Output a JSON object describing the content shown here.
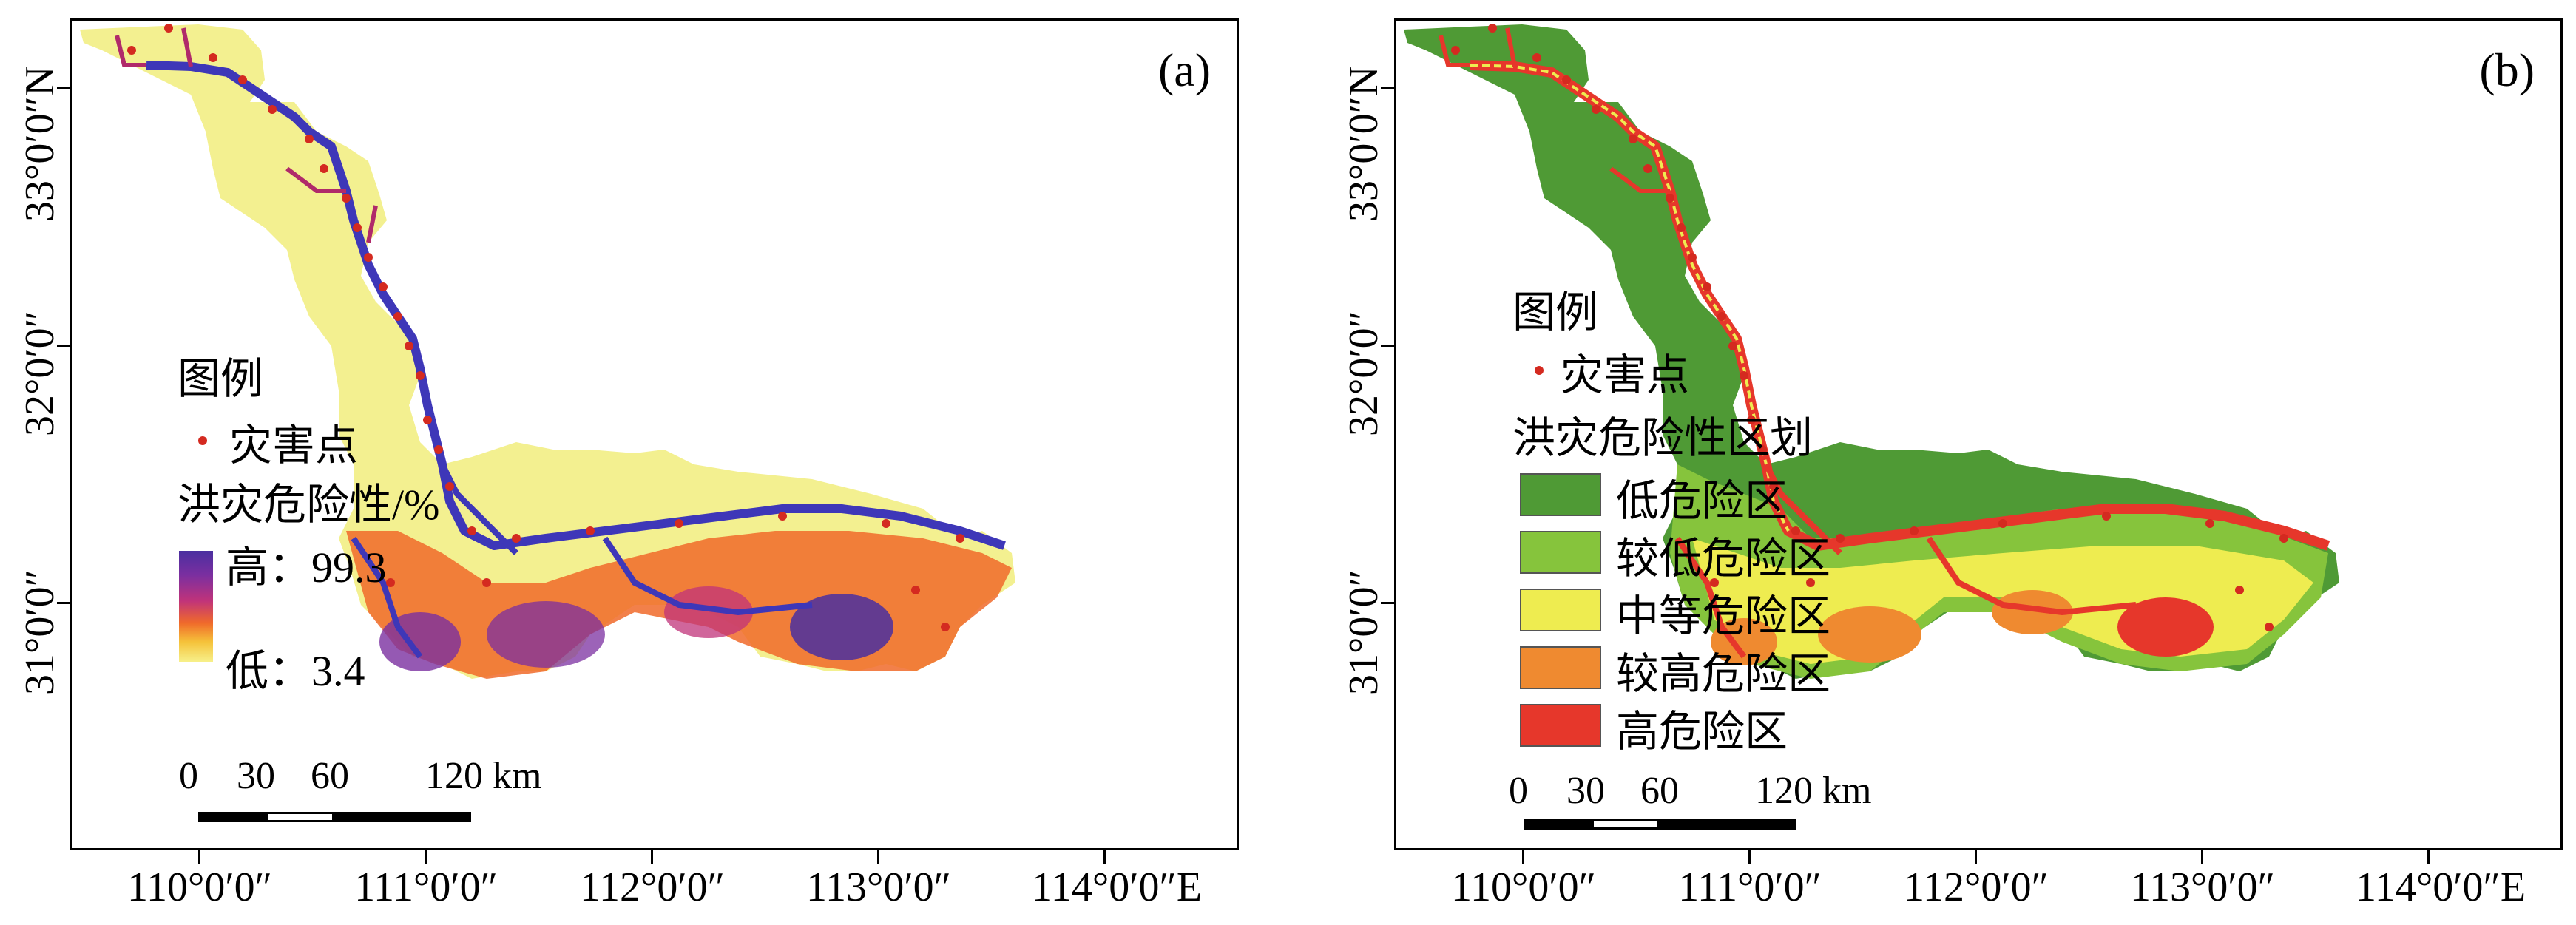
{
  "panels": [
    {
      "id": "a",
      "label": "(a)",
      "legend": {
        "title": "图例",
        "point_label": "灾害点",
        "ramp_title": "洪灾危险性/%",
        "high_label": "高：99.3",
        "low_label": "低：3.4",
        "ramp_colors": [
          "#4a2fa0",
          "#c0337a",
          "#f06a2a",
          "#f7f08a"
        ]
      },
      "base_color": "#f3f090",
      "river_color": "#3e37b8",
      "point_color": "#d42a20"
    },
    {
      "id": "b",
      "label": "(b)",
      "legend": {
        "title": "图例",
        "point_label": "灾害点",
        "zone_title": "洪灾危险性区划",
        "zones": [
          {
            "label": "低危险区",
            "color": "#4f9a35"
          },
          {
            "label": "较低危险区",
            "color": "#86c43c"
          },
          {
            "label": "中等危险区",
            "color": "#eeec50"
          },
          {
            "label": "较高危险区",
            "color": "#ef8a30"
          },
          {
            "label": "高危险区",
            "color": "#e6372b"
          }
        ]
      },
      "base_color": "#4f9a35",
      "river_color": "#e6372b",
      "point_color": "#d42a20"
    }
  ],
  "axes": {
    "lon_labels": [
      "110°0′0″",
      "111°0′0″",
      "112°0′0″",
      "113°0′0″",
      "114°0′0″E"
    ],
    "lat_labels": [
      "33°0′0″N",
      "32°0′0″",
      "31°0′0″"
    ]
  },
  "scale_bar": {
    "labels": [
      "0",
      "30",
      "60",
      "120 km"
    ]
  }
}
